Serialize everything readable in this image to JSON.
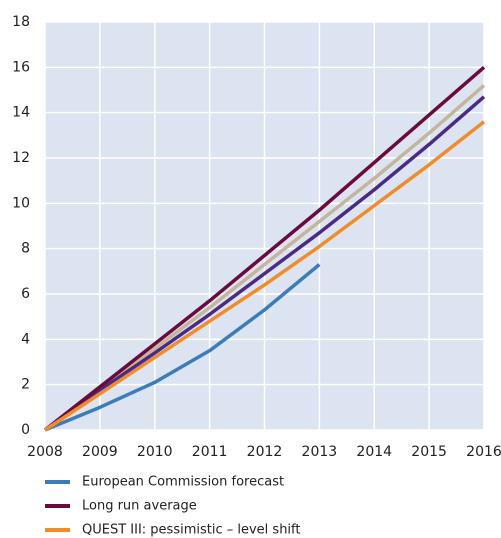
{
  "chart_data": {
    "type": "line",
    "x": [
      2008,
      2009,
      2010,
      2011,
      2012,
      2013,
      2014,
      2015,
      2016
    ],
    "xlim": [
      2008,
      2016
    ],
    "xticks": [
      2008,
      2009,
      2010,
      2011,
      2012,
      2013,
      2014,
      2015,
      2016
    ],
    "ylim": [
      0,
      18
    ],
    "yticks": [
      0,
      2,
      4,
      6,
      8,
      10,
      12,
      14,
      16,
      18
    ],
    "grid": true,
    "background": "#dbe4f0",
    "legend": "bottom",
    "series": [
      {
        "color": "#c4b59b",
        "values": [
          0,
          1.85,
          3.6,
          5.4,
          7.3,
          9.2,
          11.1,
          13.1,
          15.2
        ]
      },
      {
        "color": "#4b2a85",
        "values": [
          0,
          1.75,
          3.4,
          5.1,
          6.9,
          8.7,
          10.6,
          12.6,
          14.7
        ]
      },
      {
        "name": "European Commission forecast",
        "color": "#3b7dba",
        "values": [
          0,
          1.0,
          2.1,
          3.5,
          5.3,
          7.3,
          null,
          null,
          null
        ]
      },
      {
        "name": "Long run average",
        "color": "#6b0a3c",
        "values": [
          0,
          1.9,
          3.8,
          5.7,
          7.7,
          9.7,
          11.8,
          13.9,
          16.0
        ]
      },
      {
        "name": "QUEST III: pessimistic – level shift",
        "color": "#f28c28",
        "values": [
          0,
          1.6,
          3.2,
          4.8,
          6.4,
          8.1,
          9.9,
          11.7,
          13.6
        ]
      }
    ]
  }
}
